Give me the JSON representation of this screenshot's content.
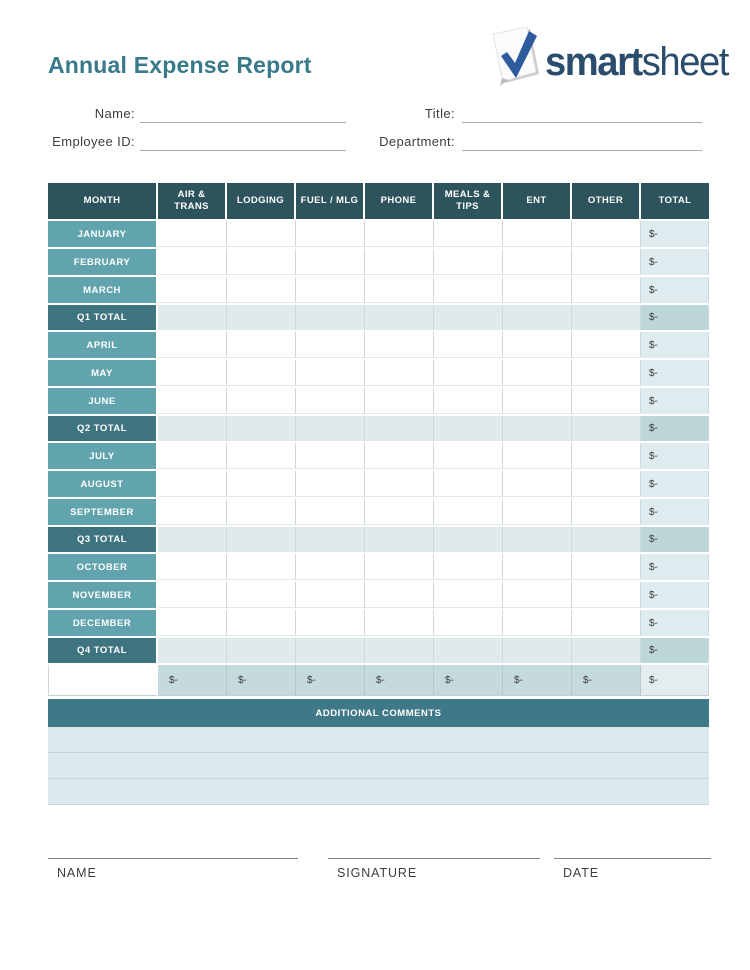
{
  "header": {
    "title": "Annual Expense Report",
    "logo": {
      "brand_bold": "smart",
      "brand_light": "sheet"
    }
  },
  "form": {
    "name_label": "Name:",
    "name_value": "",
    "title_label": "Title:",
    "title_value": "",
    "employee_id_label": "Employee ID:",
    "employee_id_value": "",
    "department_label": "Department:",
    "department_value": ""
  },
  "table": {
    "columns": [
      "MONTH",
      "AIR & TRANS",
      "LODGING",
      "FUEL / MLG",
      "PHONE",
      "MEALS & TIPS",
      "ENT",
      "OTHER",
      "TOTAL"
    ],
    "rows": [
      {
        "label": "JANUARY",
        "type": "month",
        "cells": [
          "",
          "",
          "",
          "",
          "",
          "",
          ""
        ],
        "total": "$-"
      },
      {
        "label": "FEBRUARY",
        "type": "month",
        "cells": [
          "",
          "",
          "",
          "",
          "",
          "",
          ""
        ],
        "total": "$-"
      },
      {
        "label": "MARCH",
        "type": "month",
        "cells": [
          "",
          "",
          "",
          "",
          "",
          "",
          ""
        ],
        "total": "$-"
      },
      {
        "label": "Q1 TOTAL",
        "type": "qtotal",
        "cells": [
          "",
          "",
          "",
          "",
          "",
          "",
          ""
        ],
        "total": "$-"
      },
      {
        "label": "APRIL",
        "type": "month",
        "cells": [
          "",
          "",
          "",
          "",
          "",
          "",
          ""
        ],
        "total": "$-"
      },
      {
        "label": "MAY",
        "type": "month",
        "cells": [
          "",
          "",
          "",
          "",
          "",
          "",
          ""
        ],
        "total": "$-"
      },
      {
        "label": "JUNE",
        "type": "month",
        "cells": [
          "",
          "",
          "",
          "",
          "",
          "",
          ""
        ],
        "total": "$-"
      },
      {
        "label": "Q2 TOTAL",
        "type": "qtotal",
        "cells": [
          "",
          "",
          "",
          "",
          "",
          "",
          ""
        ],
        "total": "$-"
      },
      {
        "label": "JULY",
        "type": "month",
        "cells": [
          "",
          "",
          "",
          "",
          "",
          "",
          ""
        ],
        "total": "$-"
      },
      {
        "label": "AUGUST",
        "type": "month",
        "cells": [
          "",
          "",
          "",
          "",
          "",
          "",
          ""
        ],
        "total": "$-"
      },
      {
        "label": "SEPTEMBER",
        "type": "month",
        "cells": [
          "",
          "",
          "",
          "",
          "",
          "",
          ""
        ],
        "total": "$-"
      },
      {
        "label": "Q3 TOTAL",
        "type": "qtotal",
        "cells": [
          "",
          "",
          "",
          "",
          "",
          "",
          ""
        ],
        "total": "$-"
      },
      {
        "label": "OCTOBER",
        "type": "month",
        "cells": [
          "",
          "",
          "",
          "",
          "",
          "",
          ""
        ],
        "total": "$-"
      },
      {
        "label": "NOVEMBER",
        "type": "month",
        "cells": [
          "",
          "",
          "",
          "",
          "",
          "",
          ""
        ],
        "total": "$-"
      },
      {
        "label": "DECEMBER",
        "type": "month",
        "cells": [
          "",
          "",
          "",
          "",
          "",
          "",
          ""
        ],
        "total": "$-"
      },
      {
        "label": "Q4 TOTAL",
        "type": "qtotal",
        "cells": [
          "",
          "",
          "",
          "",
          "",
          "",
          ""
        ],
        "total": "$-"
      }
    ],
    "footer": {
      "label": "",
      "values": [
        "$-",
        "$-",
        "$-",
        "$-",
        "$-",
        "$-",
        "$-"
      ],
      "total": "$-"
    }
  },
  "comments": {
    "header": "ADDITIONAL COMMENTS",
    "rows": [
      "",
      "",
      ""
    ]
  },
  "signature": {
    "name_label": "NAME",
    "signature_label": "SIGNATURE",
    "date_label": "DATE"
  },
  "colors": {
    "title_teal": "#38798a",
    "table_header": "#2d545d",
    "month_cell": "#62a4ad",
    "quarter_cell": "#3e7380",
    "total_column": "#dfecef",
    "quarter_total_cell": "#bcd6da",
    "footer_cells": "#c5dadd",
    "comments_header": "#3f7887",
    "comments_row": "#dbe9ec",
    "logo_text": "#2a4d6e",
    "logo_check": "#2d5b9e"
  }
}
